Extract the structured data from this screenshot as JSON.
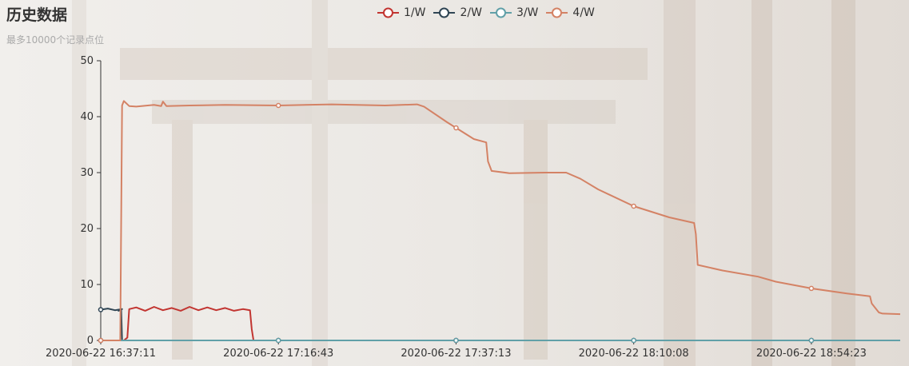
{
  "title": "历史数据",
  "subtitle": "最多10000个记录点位",
  "colors": {
    "s1": "#c23531",
    "s2": "#2f4554",
    "s3": "#61a0a8",
    "s4": "#d48265",
    "axis": "#333333"
  },
  "chart_data": {
    "type": "line",
    "title": "历史数据",
    "subtitle": "最多10000个记录点位",
    "xlabel": "",
    "ylabel": "",
    "ylim": [
      0,
      50
    ],
    "yticks": [
      "0",
      "10",
      "20",
      "30",
      "40",
      "50"
    ],
    "xticks": [
      "2020-06-22 16:37:11",
      "2020-06-22 17:16:43",
      "2020-06-22 17:37:13",
      "2020-06-22 18:10:08",
      "2020-06-22 18:54:23"
    ],
    "x_range": [
      0,
      4.5
    ],
    "legend": [
      "1/W",
      "2/W",
      "3/W",
      "4/W"
    ],
    "legend_position": "top-center",
    "grid": false,
    "series": [
      {
        "name": "1/W",
        "color": "#c23531",
        "points": [
          [
            0,
            0
          ],
          [
            0.13,
            0
          ],
          [
            0.15,
            0.5
          ],
          [
            0.16,
            5.6
          ],
          [
            0.2,
            5.9
          ],
          [
            0.25,
            5.3
          ],
          [
            0.3,
            6.0
          ],
          [
            0.35,
            5.4
          ],
          [
            0.4,
            5.8
          ],
          [
            0.45,
            5.3
          ],
          [
            0.5,
            6.0
          ],
          [
            0.55,
            5.4
          ],
          [
            0.6,
            5.9
          ],
          [
            0.65,
            5.4
          ],
          [
            0.7,
            5.8
          ],
          [
            0.75,
            5.3
          ],
          [
            0.8,
            5.6
          ],
          [
            0.84,
            5.4
          ],
          [
            0.85,
            2.0
          ],
          [
            0.86,
            0
          ],
          [
            4.5,
            0
          ]
        ]
      },
      {
        "name": "2/W",
        "color": "#2f4554",
        "points": [
          [
            0,
            5.5
          ],
          [
            0.04,
            5.7
          ],
          [
            0.08,
            5.4
          ],
          [
            0.12,
            5.6
          ],
          [
            0.1,
            5.3
          ],
          [
            0.115,
            5.5
          ],
          [
            0.12,
            0
          ],
          [
            4.5,
            0
          ]
        ]
      },
      {
        "name": "3/W",
        "color": "#61a0a8",
        "points": [
          [
            0,
            0
          ],
          [
            4.5,
            0
          ]
        ]
      },
      {
        "name": "4/W",
        "color": "#d48265",
        "points": [
          [
            0,
            0
          ],
          [
            0.11,
            0
          ],
          [
            0.12,
            42.0
          ],
          [
            0.13,
            42.8
          ],
          [
            0.16,
            41.9
          ],
          [
            0.2,
            41.8
          ],
          [
            0.3,
            42.1
          ],
          [
            0.34,
            41.9
          ],
          [
            0.35,
            42.7
          ],
          [
            0.37,
            41.9
          ],
          [
            0.5,
            42.0
          ],
          [
            0.7,
            42.1
          ],
          [
            1.0,
            42.0
          ],
          [
            1.3,
            42.2
          ],
          [
            1.6,
            42.0
          ],
          [
            1.78,
            42.2
          ],
          [
            1.82,
            41.8
          ],
          [
            1.95,
            39.0
          ],
          [
            2.1,
            36.0
          ],
          [
            2.17,
            35.4
          ],
          [
            2.18,
            32.0
          ],
          [
            2.2,
            30.3
          ],
          [
            2.3,
            29.9
          ],
          [
            2.5,
            30.0
          ],
          [
            2.62,
            30.0
          ],
          [
            2.7,
            28.9
          ],
          [
            2.8,
            27.0
          ],
          [
            3.0,
            24.0
          ],
          [
            3.2,
            22.0
          ],
          [
            3.34,
            21.0
          ],
          [
            3.35,
            19.0
          ],
          [
            3.36,
            13.5
          ],
          [
            3.5,
            12.5
          ],
          [
            3.7,
            11.4
          ],
          [
            3.8,
            10.5
          ],
          [
            4.0,
            9.3
          ],
          [
            4.2,
            8.4
          ],
          [
            4.33,
            7.9
          ],
          [
            4.34,
            6.6
          ],
          [
            4.38,
            5.0
          ],
          [
            4.4,
            4.8
          ],
          [
            4.5,
            4.7
          ]
        ]
      }
    ]
  }
}
